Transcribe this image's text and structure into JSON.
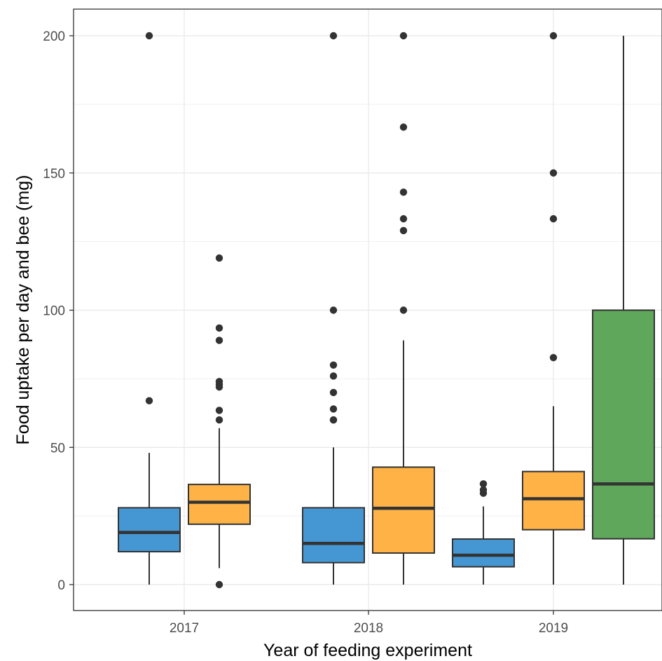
{
  "chart_data": {
    "type": "boxplot",
    "title": "",
    "xlabel": "Year of feeding experiment",
    "ylabel": "Food uptake per day and bee (mg)",
    "categories": [
      "2017",
      "2018",
      "2019"
    ],
    "ylim": [
      -10,
      210
    ],
    "yticks": [
      0,
      50,
      100,
      150,
      200
    ],
    "grid": true,
    "legend": "none",
    "colors": {
      "blue": "#4597D3",
      "orange": "#FFB347",
      "green": "#5FA85B",
      "outline": "#333333",
      "grid": "#EBEBEB",
      "panel_border": "#333333"
    },
    "series": [
      {
        "color_key": "blue",
        "boxes": [
          {
            "category": "2017",
            "whisker_low": 0,
            "q1": 12,
            "median": 19,
            "q3": 28,
            "whisker_high": 48,
            "outliers": [
              67,
              200
            ]
          },
          {
            "category": "2018",
            "whisker_low": 0,
            "q1": 8,
            "median": 15,
            "q3": 28,
            "whisker_high": 50,
            "outliers": [
              60,
              60,
              64,
              70,
              76,
              80,
              100,
              200
            ]
          },
          {
            "category": "2019",
            "whisker_low": 0,
            "q1": 6.5,
            "median": 10.7,
            "q3": 16.6,
            "whisker_high": 28.5,
            "outliers": [
              33.3,
              34.5,
              36.7
            ]
          }
        ]
      },
      {
        "color_key": "orange",
        "boxes": [
          {
            "category": "2017",
            "whisker_low": 6,
            "q1": 22,
            "median": 30,
            "q3": 36.5,
            "whisker_high": 57,
            "outliers": [
              0,
              60,
              63.5,
              72,
              73,
              74,
              89,
              93.5,
              119
            ]
          },
          {
            "category": "2018",
            "whisker_low": 0,
            "q1": 11.5,
            "median": 27.8,
            "q3": 42.8,
            "whisker_high": 89,
            "outliers": [
              100,
              129,
              133.3,
              143,
              166.7,
              200
            ]
          },
          {
            "category": "2019",
            "whisker_low": 0,
            "q1": 20,
            "median": 31.3,
            "q3": 41.2,
            "whisker_high": 65,
            "outliers": [
              82.7,
              133.3,
              150,
              200
            ]
          }
        ]
      },
      {
        "color_key": "green",
        "boxes": [
          {
            "category": "2019",
            "whisker_low": 0,
            "q1": 16.7,
            "median": 36.7,
            "q3": 100,
            "whisker_high": 200,
            "outliers": []
          }
        ]
      }
    ]
  }
}
